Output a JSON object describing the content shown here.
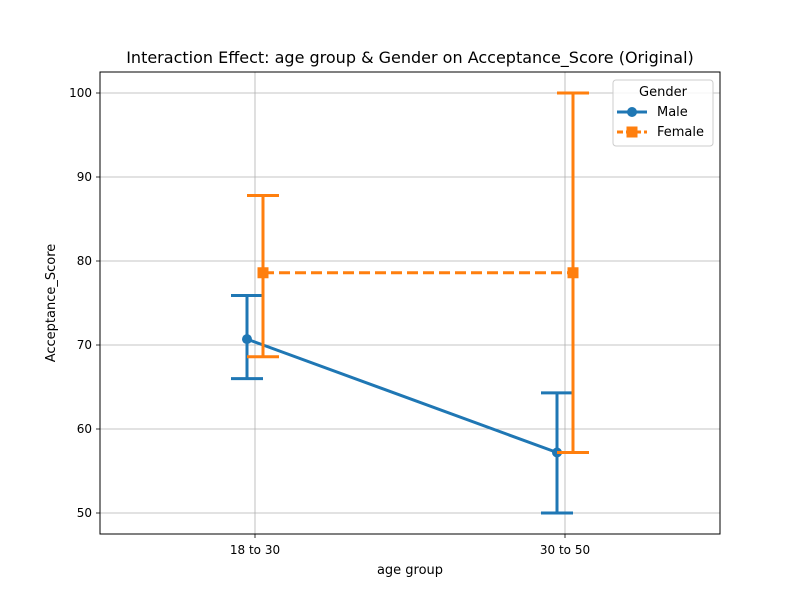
{
  "chart_data": {
    "type": "line",
    "title": "Interaction Effect: age group & Gender on Acceptance_Score (Original)",
    "xlabel": "age group",
    "ylabel": "Acceptance_Score",
    "categories": [
      "18 to 30",
      "30 to 50"
    ],
    "ylim": [
      47.5,
      102.5
    ],
    "yticks": [
      50,
      60,
      70,
      80,
      90,
      100
    ],
    "grid": true,
    "legend": {
      "title": "Gender",
      "position": "top-right"
    },
    "series": [
      {
        "name": "Male",
        "color": "#1f77b4",
        "marker": "circle",
        "linestyle": "solid",
        "values": [
          70.7,
          57.2
        ],
        "error_low": [
          66.0,
          50.0
        ],
        "error_high": [
          75.9,
          64.3
        ]
      },
      {
        "name": "Female",
        "color": "#ff7f0e",
        "marker": "square",
        "linestyle": "dashed",
        "values": [
          78.6,
          78.6
        ],
        "error_low": [
          68.6,
          57.2
        ],
        "error_high": [
          87.8,
          100.0
        ]
      }
    ]
  }
}
